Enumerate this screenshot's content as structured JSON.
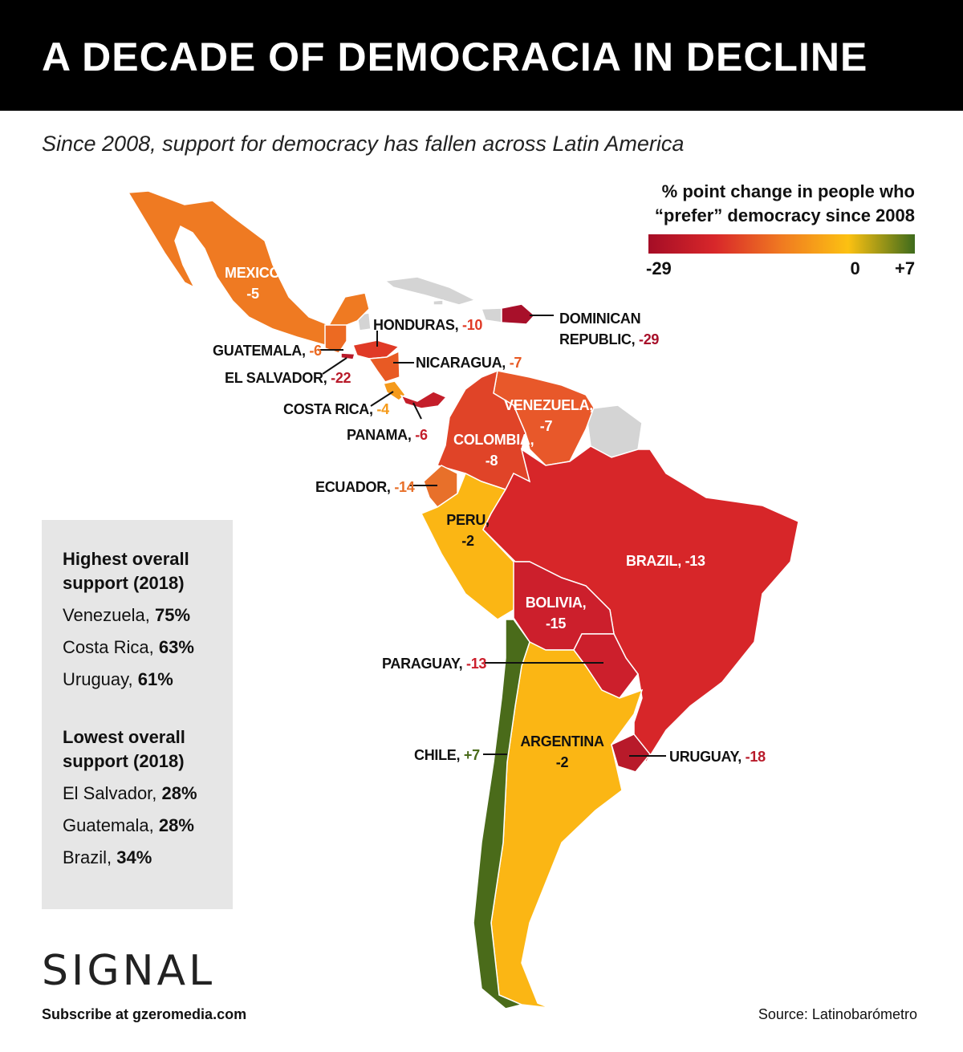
{
  "header": {
    "title": "A DECADE OF DEMOCRACIA IN DECLINE",
    "subtitle": "Since 2008, support for democracy has fallen across Latin America"
  },
  "map": {
    "legend": {
      "title": "% point change in people who “prefer” democracy since 2008",
      "colors": [
        "#a50d26",
        "#d8272a",
        "#f07a21",
        "#fcc112",
        "#3e6b1c"
      ],
      "lim": [
        -29,
        7
      ],
      "ticks": [
        -29,
        0,
        {
          "value": 7,
          "label": "+7"
        }
      ]
    },
    "regions": [
      {
        "name": "MEXICO,",
        "value": -5,
        "color": "#ef7a22"
      },
      {
        "name": "HONDURAS,",
        "value": -10,
        "color": "#e03a26"
      },
      {
        "name": "DOMINICAN REPUBLIC,",
        "value": -29,
        "color": "#a8102a"
      },
      {
        "name": "GUATEMALA,",
        "value": -6,
        "color": "#ec6a22"
      },
      {
        "name": "NICARAGUA,",
        "value": -7,
        "color": "#e85a24"
      },
      {
        "name": "EL SALVADOR,",
        "value": -22,
        "color": "#b81a2a"
      },
      {
        "name": "COSTA RICA,",
        "value": -4,
        "color": "#f59a1a"
      },
      {
        "name": "PANAMA,",
        "value": -6,
        "color": "#c41e2a"
      },
      {
        "name": "VENEZUELA,",
        "value": -7,
        "color": "#e8582a"
      },
      {
        "name": "COLOMBIA,",
        "value": -8,
        "color": "#e04428"
      },
      {
        "name": "ECUADOR,",
        "value": -14,
        "color": "#e8702a"
      },
      {
        "name": "PERU,",
        "value": -2,
        "color": "#fbb614"
      },
      {
        "name": "BRAZIL,",
        "value": -13,
        "color": "#d72629"
      },
      {
        "name": "BOLIVIA,",
        "value": -15,
        "color": "#cc1f2c"
      },
      {
        "name": "PARAGUAY,",
        "value": -13,
        "color": "#cc1f2c"
      },
      {
        "name": "ARGENTINA",
        "value": -2,
        "color": "#fbb614"
      },
      {
        "name": "CHILE,",
        "value": 7,
        "value_label": "+7",
        "color": "#4a6b1a"
      },
      {
        "name": "URUGUAY,",
        "value": -18,
        "color": "#b81a2a"
      }
    ]
  },
  "sidebar": {
    "sections": [
      {
        "title": "Highest overall support (2018)",
        "items": [
          {
            "name": "Venezuela,",
            "value": "75%"
          },
          {
            "name": "Costa Rica,",
            "value": "63%"
          },
          {
            "name": "Uruguay,",
            "value": "61%"
          }
        ]
      },
      {
        "title": "Lowest overall support (2018)",
        "items": [
          {
            "name": "El Salvador,",
            "value": "28%"
          },
          {
            "name": "Guatemala,",
            "value": "28%"
          },
          {
            "name": "Brazil,",
            "value": "34%"
          }
        ]
      }
    ]
  },
  "footer": {
    "logo": "SIGNAL",
    "subscribe": "Subscribe at gzeromedia.com",
    "source": "Source: Latinobarómetro"
  }
}
